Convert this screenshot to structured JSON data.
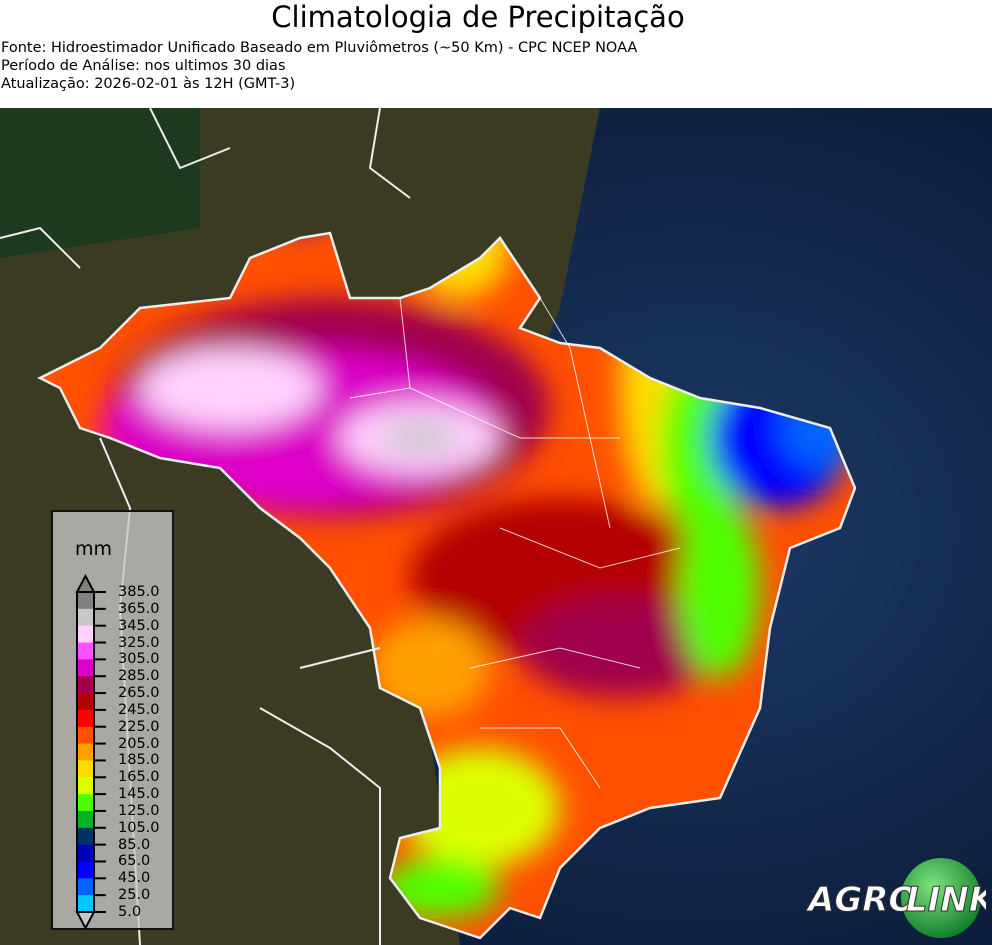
{
  "header": {
    "title": "Climatologia de Precipitação",
    "source": "Fonte: Hidroestimador Unificado Baseado em Pluviômetros (~50 Km) - CPC NCEP NOAA",
    "period": "Período de Análise: nos ultimos 30 dias",
    "updated": "Atualização: 2026-02-01 às 12H (GMT-3)"
  },
  "legend": {
    "unit": "mm",
    "ticks": [
      "385.0",
      "365.0",
      "345.0",
      "325.0",
      "305.0",
      "285.0",
      "265.0",
      "245.0",
      "225.0",
      "205.0",
      "185.0",
      "165.0",
      "145.0",
      "125.0",
      "105.0",
      "85.0",
      "65.0",
      "45.0",
      "25.0",
      "5.0"
    ],
    "colors": [
      "#808080",
      "#c8c8c8",
      "#ffd2ff",
      "#ff50ff",
      "#dc00c8",
      "#a0004b",
      "#b40000",
      "#ff0000",
      "#ff5000",
      "#ffa000",
      "#ffdc00",
      "#dcff00",
      "#50ff00",
      "#00b428",
      "#003264",
      "#0000b4",
      "#0000ff",
      "#0064ff",
      "#00c8ff"
    ],
    "over_color": "#808080",
    "under_color": "#c8c8c8"
  },
  "logo": {
    "text_left": "AGRO",
    "text_right": "LINK"
  }
}
